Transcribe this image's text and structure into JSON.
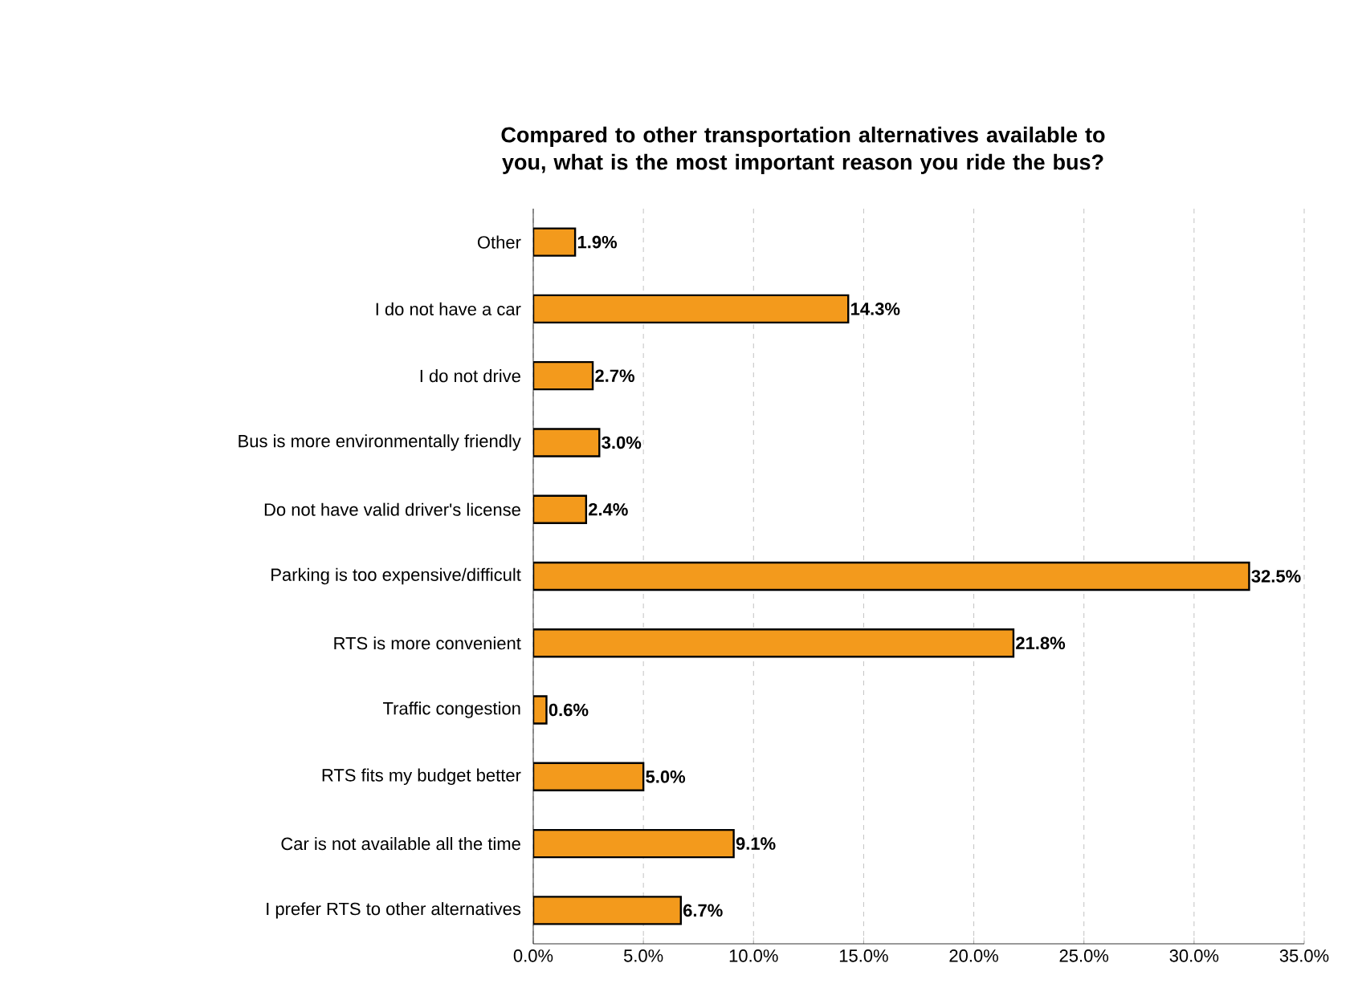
{
  "chart_data": {
    "type": "bar",
    "orientation": "horizontal",
    "title": "Compared to other transportation alternatives available to you, what is the most important reason you ride the bus?",
    "categories": [
      "Other",
      "I do not have a car",
      "I do not drive",
      "Bus is more environmentally friendly",
      "Do not have valid driver's license",
      "Parking is too expensive/difficult",
      "RTS is more convenient",
      "Traffic congestion",
      "RTS fits my budget better",
      "Car is not available all the time",
      "I prefer RTS to other alternatives"
    ],
    "values": [
      1.9,
      14.3,
      2.7,
      3.0,
      2.4,
      32.5,
      21.8,
      0.6,
      5.0,
      9.1,
      6.7
    ],
    "value_labels": [
      "1.9%",
      "14.3%",
      "2.7%",
      "3.0%",
      "2.4%",
      "32.5%",
      "21.8%",
      "0.6%",
      "5.0%",
      "9.1%",
      "6.7%"
    ],
    "color": "#f39a1c",
    "xlim": [
      0,
      35
    ],
    "xticks": [
      {
        "value": 0,
        "label": "0.0%"
      },
      {
        "value": 5,
        "label": "5.0%"
      },
      {
        "value": 10,
        "label": "10.0%"
      },
      {
        "value": 15,
        "label": "15.0%"
      },
      {
        "value": 20,
        "label": "20.0%"
      },
      {
        "value": 25,
        "label": "25.0%"
      },
      {
        "value": 30,
        "label": "30.0%"
      },
      {
        "value": 35,
        "label": "35.0%"
      }
    ],
    "grid": "x"
  }
}
